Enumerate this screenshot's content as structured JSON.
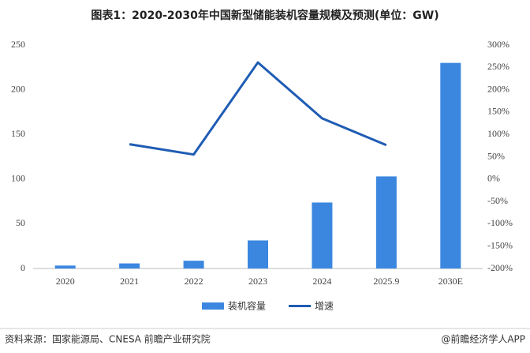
{
  "chart_data": {
    "type": "bar-line",
    "title": "图表1：2020-2030年中国新型储能装机容量规模及预测(单位：GW)",
    "categories": [
      "2020",
      "2021",
      "2022",
      "2023",
      "2024",
      "2025.9",
      "2030E"
    ],
    "series": [
      {
        "name": "装机容量",
        "type": "bar",
        "color": "#3b87e0",
        "values": [
          3.3,
          5.7,
          8.7,
          31.4,
          73.8,
          103,
          230
        ]
      },
      {
        "name": "增速",
        "type": "line",
        "axis": "y2",
        "color": "#1f5cb4",
        "values": [
          null,
          78,
          55,
          261,
          136,
          76,
          null
        ]
      }
    ],
    "ylim": [
      0,
      250
    ],
    "yticks": [
      0,
      50,
      100,
      150,
      200,
      250
    ],
    "y2lim": [
      -200,
      300
    ],
    "y2ticks": [
      {
        "value": -200,
        "label": "-200%"
      },
      {
        "value": -150,
        "label": "-150%"
      },
      {
        "value": -100,
        "label": "-100%"
      },
      {
        "value": -50,
        "label": "-50%"
      },
      {
        "value": 0,
        "label": "0%"
      },
      {
        "value": 50,
        "label": "50%"
      },
      {
        "value": 100,
        "label": "100%"
      },
      {
        "value": 150,
        "label": "150%"
      },
      {
        "value": 200,
        "label": "200%"
      },
      {
        "value": 250,
        "label": "250%"
      },
      {
        "value": 300,
        "label": "300%"
      }
    ],
    "legend": "bottom",
    "source": "资料来源：国家能源局、CNESA 前瞻产业研究院",
    "credit": "@前瞻经济学人APP"
  }
}
